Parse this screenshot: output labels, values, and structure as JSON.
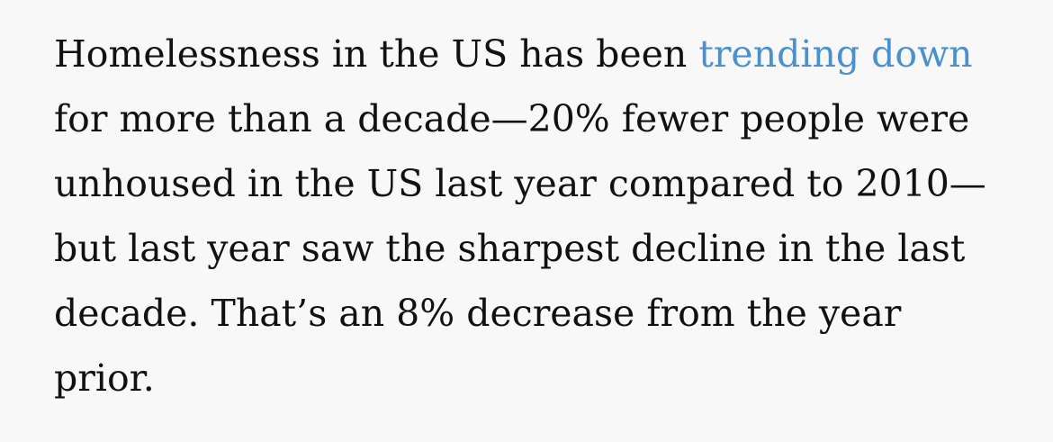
{
  "paragraph": {
    "line1_before_link": "Homelessness in the US has been ",
    "link_text": "trending down",
    "line2": "for more than a decade—20% fewer people were",
    "line3": "unhoused in the US last year compared to 2010—",
    "line4": "but last year saw the sharpest decline in the last",
    "line5": "decade. That’s an 8% decrease from the year",
    "line6": "prior."
  },
  "colors": {
    "background": "#f8f8f8",
    "text": "#111111",
    "link": "#4a90d0"
  }
}
